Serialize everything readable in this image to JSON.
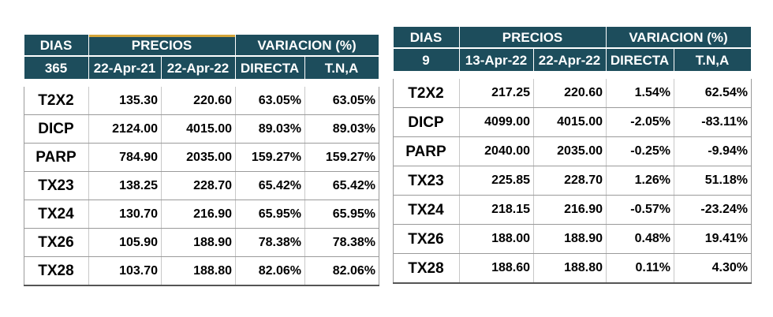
{
  "left_table": {
    "headers": {
      "dias": "DIAS",
      "precios": "PRECIOS",
      "variacion": "VARIACION (%)",
      "days": "365",
      "date1": "22-Apr-21",
      "date2": "22-Apr-22",
      "directa": "DIRECTA",
      "tna": "T.N,A"
    },
    "rows": [
      {
        "name": "T2X2",
        "p1": "135.30",
        "p2": "220.60",
        "directa": "63.05%",
        "tna": "63.05%"
      },
      {
        "name": "DICP",
        "p1": "2124.00",
        "p2": "4015.00",
        "directa": "89.03%",
        "tna": "89.03%"
      },
      {
        "name": "PARP",
        "p1": "784.90",
        "p2": "2035.00",
        "directa": "159.27%",
        "tna": "159.27%"
      },
      {
        "name": "TX23",
        "p1": "138.25",
        "p2": "228.70",
        "directa": "65.42%",
        "tna": "65.42%"
      },
      {
        "name": "TX24",
        "p1": "130.70",
        "p2": "216.90",
        "directa": "65.95%",
        "tna": "65.95%"
      },
      {
        "name": "TX26",
        "p1": "105.90",
        "p2": "188.90",
        "directa": "78.38%",
        "tna": "78.38%"
      },
      {
        "name": "TX28",
        "p1": "103.70",
        "p2": "188.80",
        "directa": "82.06%",
        "tna": "82.06%"
      }
    ]
  },
  "right_table": {
    "headers": {
      "dias": "DIAS",
      "precios": "PRECIOS",
      "variacion": "VARIACION (%)",
      "days": "9",
      "date1": "13-Apr-22",
      "date2": "22-Apr-22",
      "directa": "DIRECTA",
      "tna": "T.N,A"
    },
    "rows": [
      {
        "name": "T2X2",
        "p1": "217.25",
        "p2": "220.60",
        "directa": "1.54%",
        "tna": "62.54%"
      },
      {
        "name": "DICP",
        "p1": "4099.00",
        "p2": "4015.00",
        "directa": "-2.05%",
        "tna": "-83.11%"
      },
      {
        "name": "PARP",
        "p1": "2040.00",
        "p2": "2035.00",
        "directa": "-0.25%",
        "tna": "-9.94%"
      },
      {
        "name": "TX23",
        "p1": "225.85",
        "p2": "228.70",
        "directa": "1.26%",
        "tna": "51.18%"
      },
      {
        "name": "TX24",
        "p1": "218.15",
        "p2": "216.90",
        "directa": "-0.57%",
        "tna": "-23.24%"
      },
      {
        "name": "TX26",
        "p1": "188.00",
        "p2": "188.90",
        "directa": "0.48%",
        "tna": "19.41%"
      },
      {
        "name": "TX28",
        "p1": "188.60",
        "p2": "188.80",
        "directa": "0.11%",
        "tna": "4.30%"
      }
    ]
  },
  "colors": {
    "header_bg": "#1d4d5c",
    "header_text": "#ffffff",
    "accent": "#d4a53a"
  }
}
